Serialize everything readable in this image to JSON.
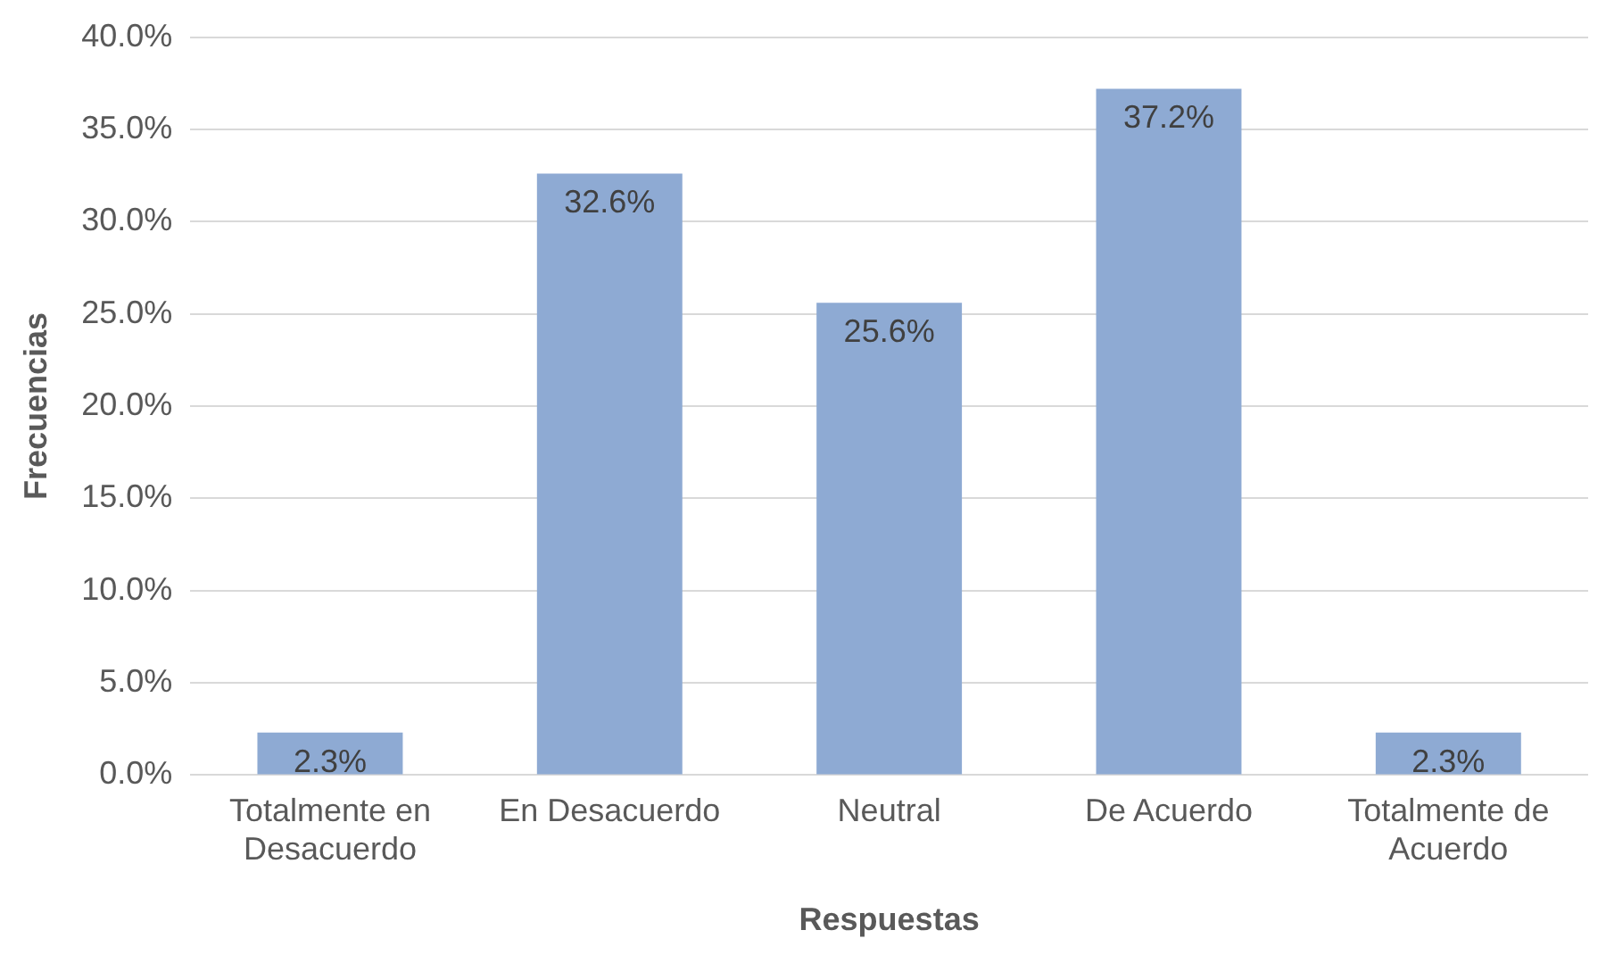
{
  "chart_data": {
    "type": "bar",
    "xlabel": "Respuestas",
    "ylabel": "Frecuencias",
    "categories": [
      "Totalmente en Desacuerdo",
      "En Desacuerdo",
      "Neutral",
      "De Acuerdo",
      "Totalmente de Acuerdo"
    ],
    "values": [
      2.3,
      32.6,
      25.6,
      37.2,
      2.3
    ],
    "value_labels": [
      "2.3%",
      "32.6%",
      "25.6%",
      "37.2%",
      "2.3%"
    ],
    "color": "#8eaad3",
    "ylim": [
      0,
      40
    ],
    "yticks": [
      {
        "value": 0,
        "label": "0.0%"
      },
      {
        "value": 5,
        "label": "5.0%"
      },
      {
        "value": 10,
        "label": "10.0%"
      },
      {
        "value": 15,
        "label": "15.0%"
      },
      {
        "value": 20,
        "label": "20.0%"
      },
      {
        "value": 25,
        "label": "25.0%"
      },
      {
        "value": 30,
        "label": "30.0%"
      },
      {
        "value": 35,
        "label": "35.0%"
      },
      {
        "value": 40,
        "label": "40.0%"
      }
    ],
    "grid": "y",
    "legend": false
  }
}
